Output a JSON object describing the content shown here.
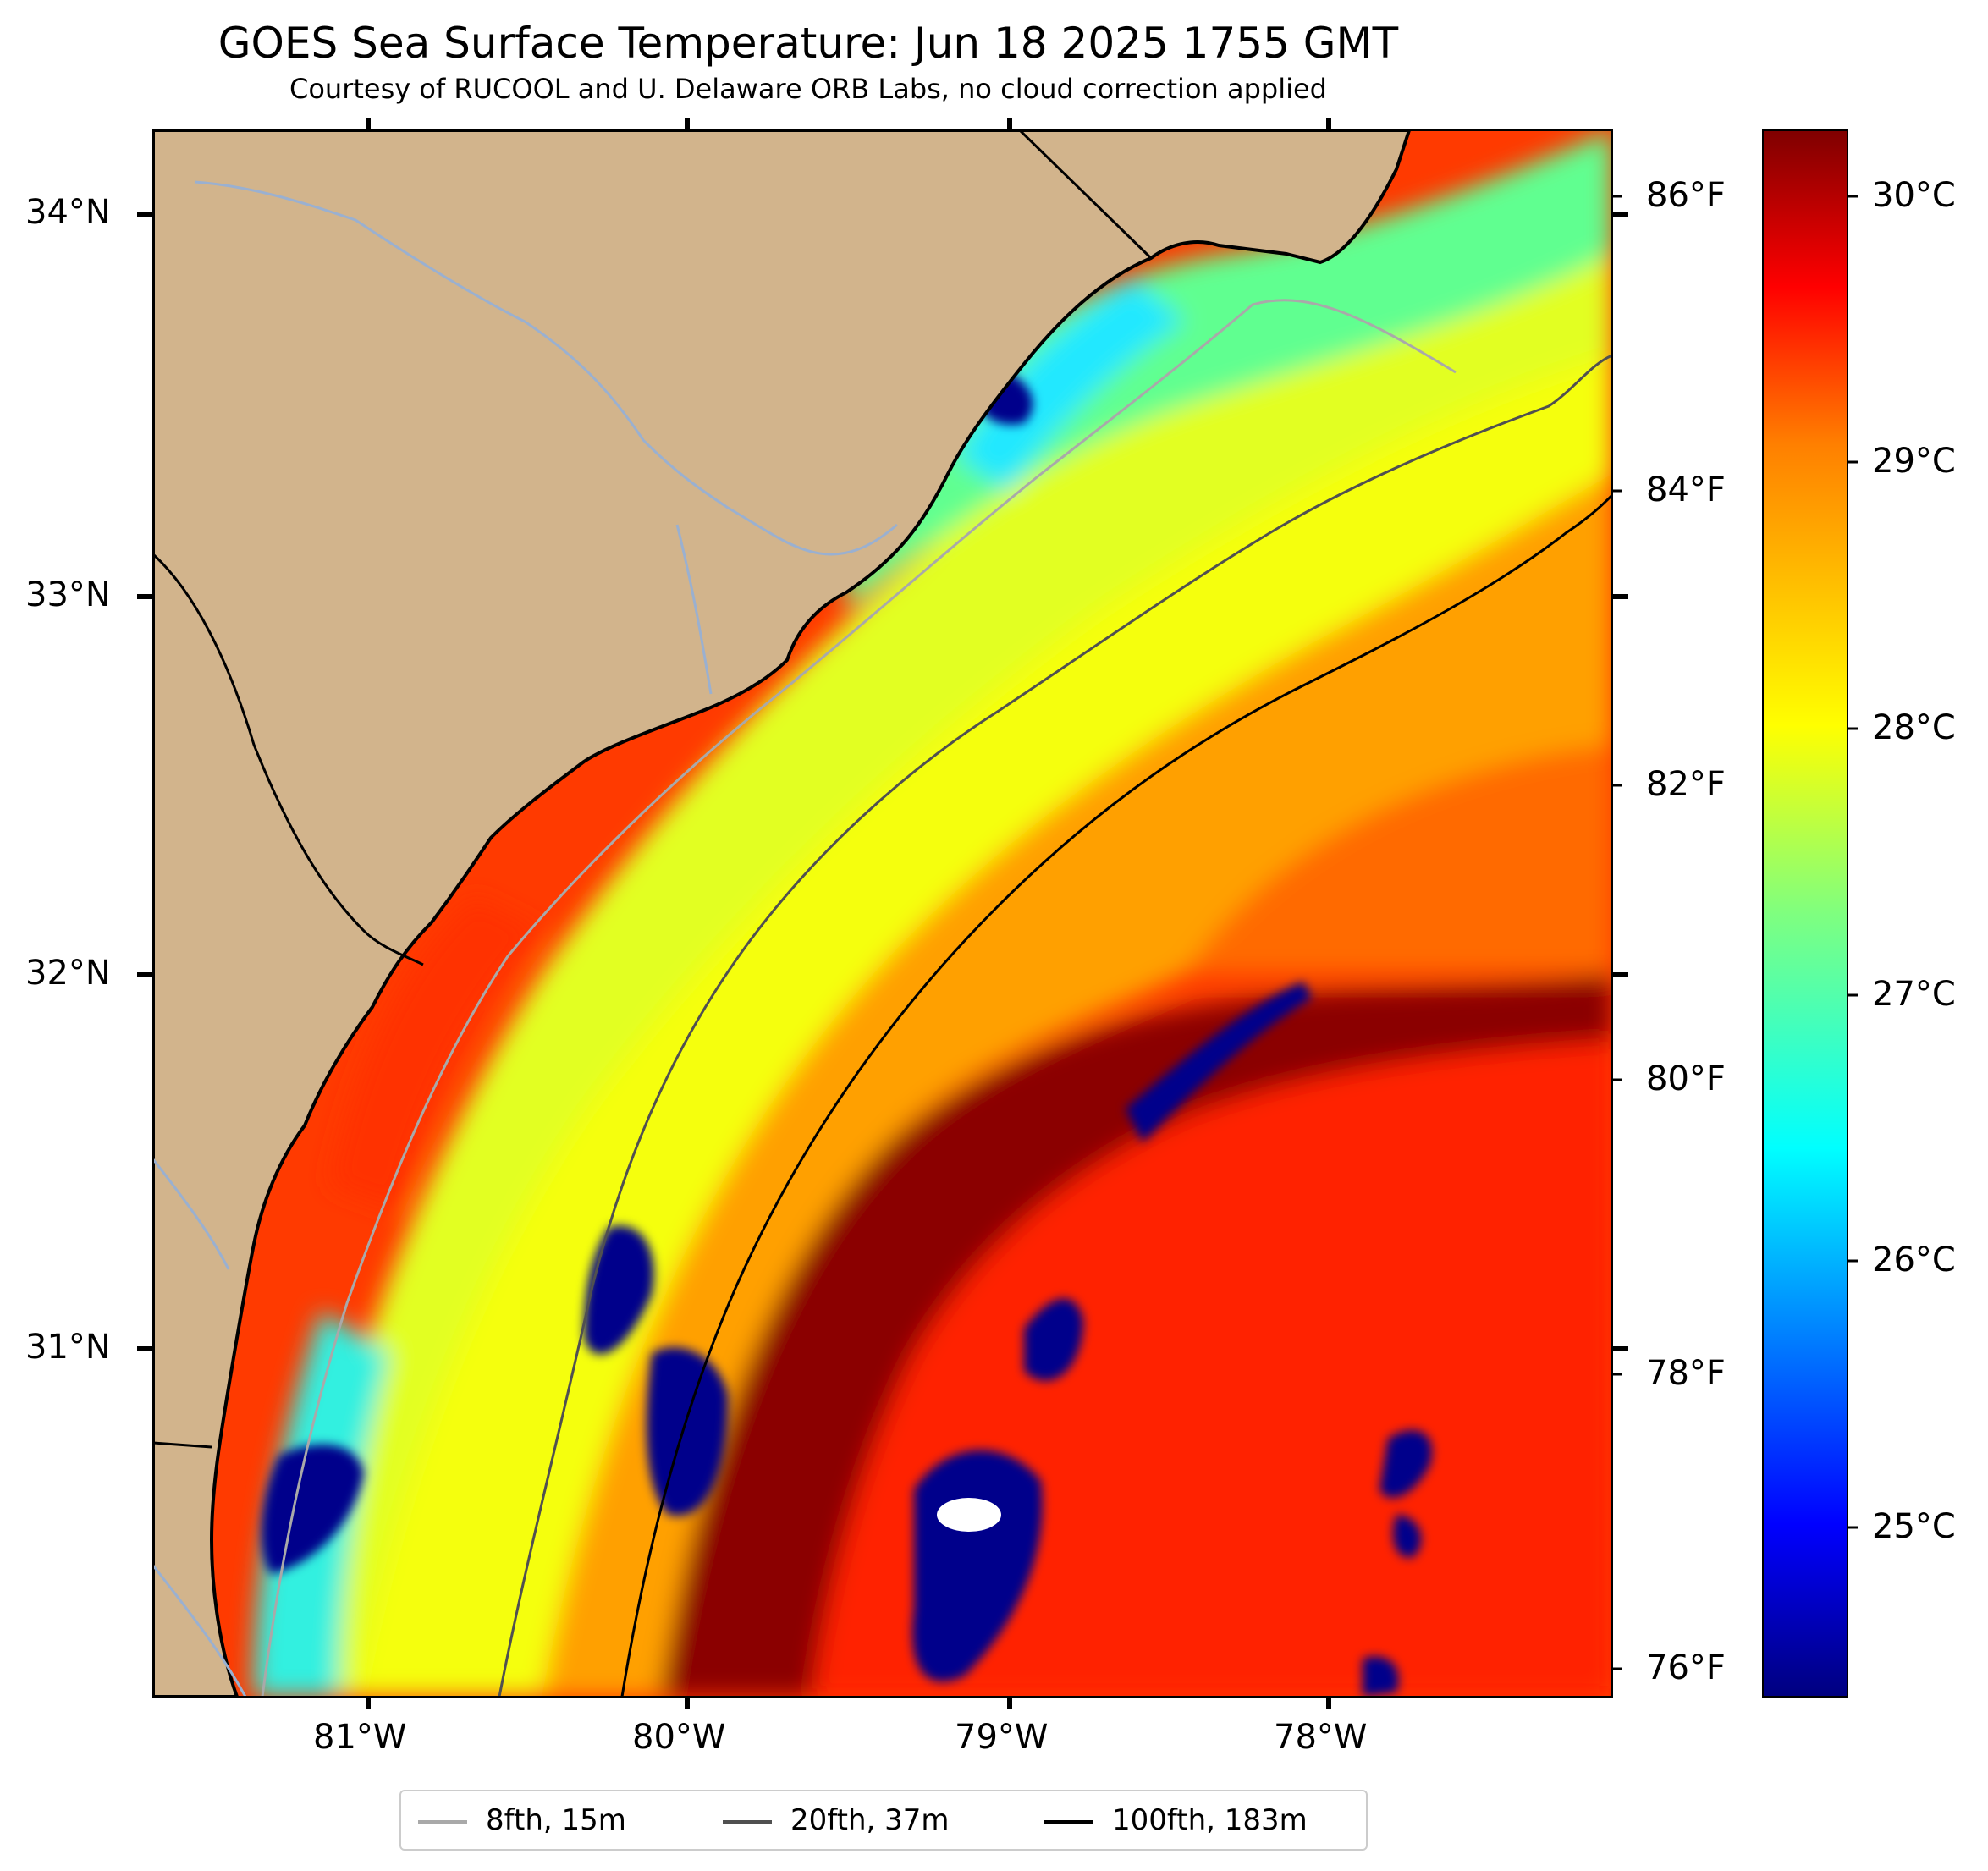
{
  "title": "GOES Sea Surface Temperature: Jun 18 2025 1755 GMT",
  "subtitle": "Courtesy of RUCOOL and U. Delaware ORB Labs, no cloud correction applied",
  "map": {
    "land_color": "#d2b48c",
    "lon_labels": [
      "81°W",
      "80°W",
      "79°W",
      "78°W"
    ],
    "lat_labels": [
      "34°N",
      "33°N",
      "32°N",
      "31°N"
    ]
  },
  "colorbar": {
    "celsius_labels": [
      "30°C",
      "29°C",
      "28°C",
      "27°C",
      "26°C",
      "25°C"
    ],
    "fahrenheit_labels": [
      "86°F",
      "84°F",
      "82°F",
      "80°F",
      "78°F",
      "76°F"
    ],
    "colormap": [
      "#00007f",
      "#0000ff",
      "#007fff",
      "#00ffff",
      "#7fff7f",
      "#ffff00",
      "#ff7f00",
      "#ff0000",
      "#7f0000"
    ]
  },
  "legend": [
    {
      "label": "8fth, 15m",
      "color": "#a9a9a9"
    },
    {
      "label": "20fth, 37m",
      "color": "#505050"
    },
    {
      "label": "100fth, 183m",
      "color": "#000000"
    }
  ]
}
